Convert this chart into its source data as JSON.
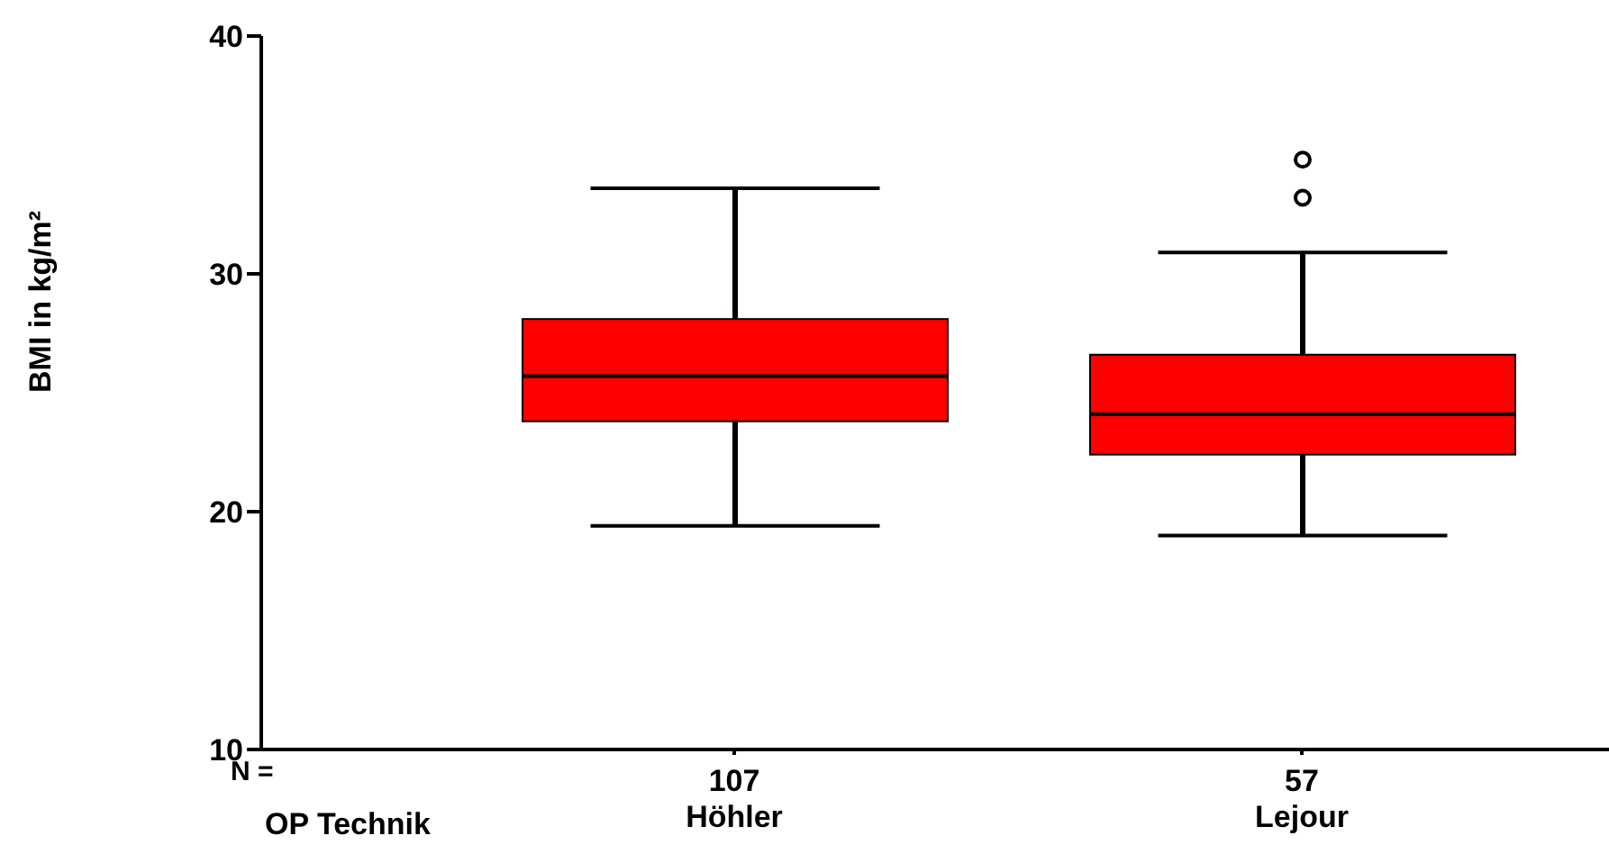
{
  "chart_data": {
    "type": "box",
    "xlabel": "OP Technik",
    "ylabel": "BMI in kg/m²",
    "categories": [
      "Höhler",
      "Lejour"
    ],
    "boxes": [
      {
        "low": 19.4,
        "q1": 23.8,
        "median": 25.7,
        "q3": 28.1,
        "high": 33.6
      },
      {
        "low": 19.0,
        "q1": 22.4,
        "median": 24.1,
        "q3": 26.6,
        "high": 30.9,
        "outliers": [
          33.2,
          34.8
        ]
      }
    ],
    "color": "#ff0000",
    "ylim": [
      10,
      40
    ],
    "yticks": [
      10,
      20,
      30,
      40
    ],
    "annotations": [
      "N =",
      "107",
      "57"
    ]
  }
}
